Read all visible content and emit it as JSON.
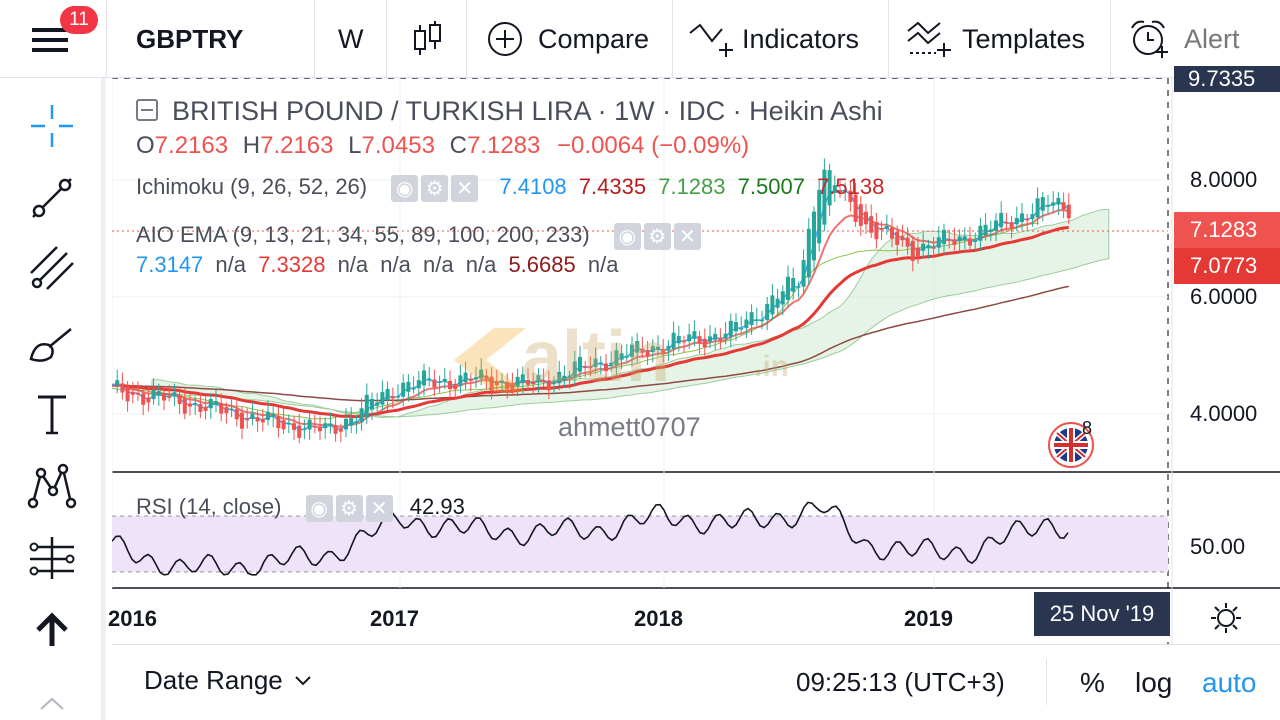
{
  "toolbar": {
    "badge_count": "11",
    "symbol": "GBPTRY",
    "interval": "W",
    "compare_label": "Compare",
    "indicators_label": "Indicators",
    "templates_label": "Templates",
    "alert_label": "Alert"
  },
  "legend": {
    "title": "BRITISH POUND / TURKISH LIRA",
    "interval": "· 1W",
    "source": "· IDC",
    "chart_style": "· Heikin Ashi",
    "ohlc": {
      "o_label": "O",
      "o": "7.2163",
      "h_label": "H",
      "h": "7.2163",
      "l_label": "L",
      "l": "7.0453",
      "c_label": "C",
      "c": "7.1283",
      "change": "−0.0064 (−0.09%)"
    },
    "ichimoku": {
      "name": "Ichimoku (9, 26, 52, 26)",
      "v1": "7.4108",
      "v2": "7.4335",
      "v3": "7.1283",
      "v4": "7.5007",
      "v5": "7.5138"
    },
    "ema": {
      "name": "AIO EMA (9, 13, 21, 34, 55, 89, 100, 200, 233)",
      "v1": "7.3147",
      "v2": "n/a",
      "v3": "7.3328",
      "v4": "n/a",
      "v5": "n/a",
      "v6": "n/a",
      "v7": "n/a",
      "v8": "5.6685",
      "v9": "n/a"
    },
    "rsi": {
      "name": "RSI (14, close)",
      "value": "42.93"
    }
  },
  "watermark": {
    "brand": "altin",
    "suffix": ".in",
    "author": "ahmett0707"
  },
  "events_count": "8",
  "price_axis": {
    "top_label": "9.7335",
    "labels": [
      "8.0000",
      "6.0000",
      "4.0000"
    ],
    "last_price": "7.1283",
    "ema_price": "7.0773",
    "rsi_label": "50.00"
  },
  "time_axis": {
    "labels": [
      "2016",
      "2017",
      "2018",
      "2019"
    ],
    "crosshair_date": "25 Nov '19"
  },
  "bottom": {
    "date_range": "Date Range",
    "clock": "09:25:13 (UTC+3)",
    "percent": "%",
    "log": "log",
    "auto": "auto"
  },
  "colors": {
    "up": "#26a69a",
    "down": "#ef5350",
    "ema_red": "#e53935",
    "ema_blue": "#42a5f5",
    "ema_brown": "#8d4b44",
    "cloud": "#c8e6c9",
    "rsi_band": "#efe3fa",
    "accent": "#2196f3"
  },
  "chart_data": {
    "type": "candlestick",
    "style": "Heikin Ashi",
    "symbol": "GBPTRY",
    "interval": "1W",
    "x_range": [
      "2015-11",
      "2019-11-25"
    ],
    "y_range": [
      3.5,
      9.7335
    ],
    "series": [
      {
        "name": "GBPTRY",
        "points": [
          [
            "2016-01",
            4.4
          ],
          [
            "2016-04",
            4.2
          ],
          [
            "2016-07",
            3.9
          ],
          [
            "2016-10",
            3.7
          ],
          [
            "2017-01",
            4.5
          ],
          [
            "2017-04",
            4.6
          ],
          [
            "2017-07",
            4.5
          ],
          [
            "2017-10",
            4.9
          ],
          [
            "2018-01",
            5.2
          ],
          [
            "2018-04",
            5.4
          ],
          [
            "2018-07",
            6.3
          ],
          [
            "2018-08",
            8.2
          ],
          [
            "2018-10",
            7.2
          ],
          [
            "2018-12",
            6.8
          ],
          [
            "2019-03",
            7.1
          ],
          [
            "2019-06",
            7.6
          ],
          [
            "2019-08",
            7.5
          ],
          [
            "2019-11",
            7.1283
          ]
        ]
      }
    ],
    "rsi": {
      "name": "RSI (14, close)",
      "band": [
        30,
        70
      ],
      "last": 42.93,
      "points": [
        [
          "2016-01",
          48
        ],
        [
          "2016-04",
          32
        ],
        [
          "2016-07",
          35
        ],
        [
          "2016-10",
          42
        ],
        [
          "2017-01",
          68
        ],
        [
          "2017-04",
          60
        ],
        [
          "2017-07",
          58
        ],
        [
          "2017-10",
          60
        ],
        [
          "2018-01",
          70
        ],
        [
          "2018-04",
          64
        ],
        [
          "2018-07",
          72
        ],
        [
          "2018-08",
          76
        ],
        [
          "2018-10",
          50
        ],
        [
          "2018-12",
          44
        ],
        [
          "2019-03",
          46
        ],
        [
          "2019-06",
          66
        ],
        [
          "2019-08",
          58
        ],
        [
          "2019-11",
          42.93
        ]
      ]
    }
  }
}
